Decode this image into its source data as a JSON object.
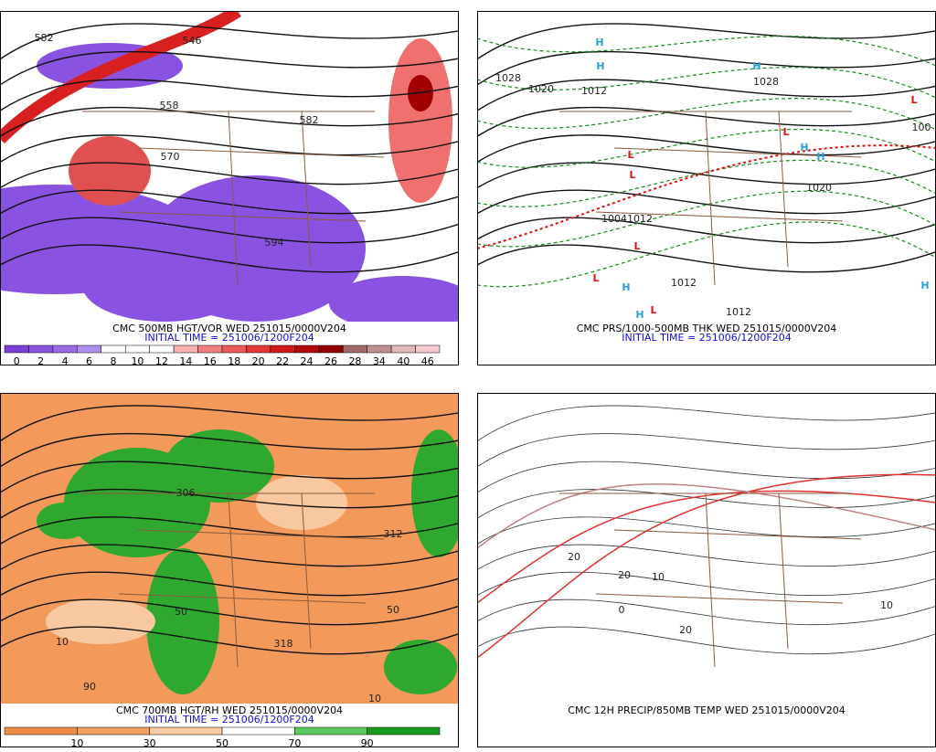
{
  "panels": [
    {
      "caption": "CMC 500MB HGT/VOR WED 251015/0000V204",
      "initial_time": "INITIAL TIME = 251006/1200F204",
      "colorbar": {
        "labels": [
          "0",
          "2",
          "4",
          "6",
          "8",
          "10",
          "12",
          "14",
          "16",
          "18",
          "20",
          "22",
          "24",
          "26",
          "28",
          "34",
          "40",
          "46"
        ],
        "colors": [
          "#7b3fd8",
          "#8b55e0",
          "#9a6ae6",
          "#b090ee",
          "#ffffff",
          "#ffffff",
          "#ffffff",
          "#f6b0b0",
          "#f08080",
          "#ea5a5a",
          "#e23838",
          "#d01818",
          "#b00a0a",
          "#900000",
          "#a06868",
          "#c09090",
          "#e0b8b8",
          "#f6c8d0"
        ]
      },
      "map_labels": [
        "582",
        "546",
        "558",
        "570",
        "582",
        "594"
      ]
    },
    {
      "caption": "CMC PRS/1000-500MB THK WED 251015/0000V204",
      "initial_time": "INITIAL TIME = 251006/1200F204",
      "map_labels": [
        "1028",
        "1020",
        "1012",
        "1028",
        "1020",
        "1004",
        "1012",
        "1012",
        "1012",
        "100"
      ],
      "centers": [
        {
          "text": "H",
          "color": "#2aa0dc"
        },
        {
          "text": "H",
          "color": "#2aa0dc"
        },
        {
          "text": "H",
          "color": "#2aa0dc"
        },
        {
          "text": "L",
          "color": "#e01010"
        },
        {
          "text": "H",
          "color": "#2aa0dc"
        },
        {
          "text": "H",
          "color": "#2aa0dc"
        },
        {
          "text": "L",
          "color": "#e01010"
        },
        {
          "text": "L",
          "color": "#e01010"
        },
        {
          "text": "L",
          "color": "#e01010"
        },
        {
          "text": "L",
          "color": "#e01010"
        },
        {
          "text": "H",
          "color": "#2aa0dc"
        },
        {
          "text": "H",
          "color": "#2aa0dc"
        },
        {
          "text": "L",
          "color": "#e01010"
        },
        {
          "text": "L",
          "color": "#e01010"
        },
        {
          "text": "H",
          "color": "#2aa0dc"
        }
      ]
    },
    {
      "caption": "CMC 700MB HGT/RH WED 251015/0000V204",
      "initial_time": "INITIAL TIME = 251006/1200F204",
      "colorbar": {
        "labels": [
          "10",
          "30",
          "50",
          "70",
          "90"
        ],
        "colors": [
          "#f08a4a",
          "#f4a060",
          "#f8c8a0",
          "#ffffff",
          "#5cc85c",
          "#1a9a1a"
        ]
      },
      "map_labels": [
        "306",
        "312",
        "318",
        "10",
        "50",
        "90",
        "10",
        "50"
      ]
    },
    {
      "caption": "CMC 12H PRECIP/850MB TEMP WED 251015/0000V204",
      "map_labels": [
        "20",
        "10",
        "20",
        "0",
        "20",
        "10"
      ]
    }
  ]
}
